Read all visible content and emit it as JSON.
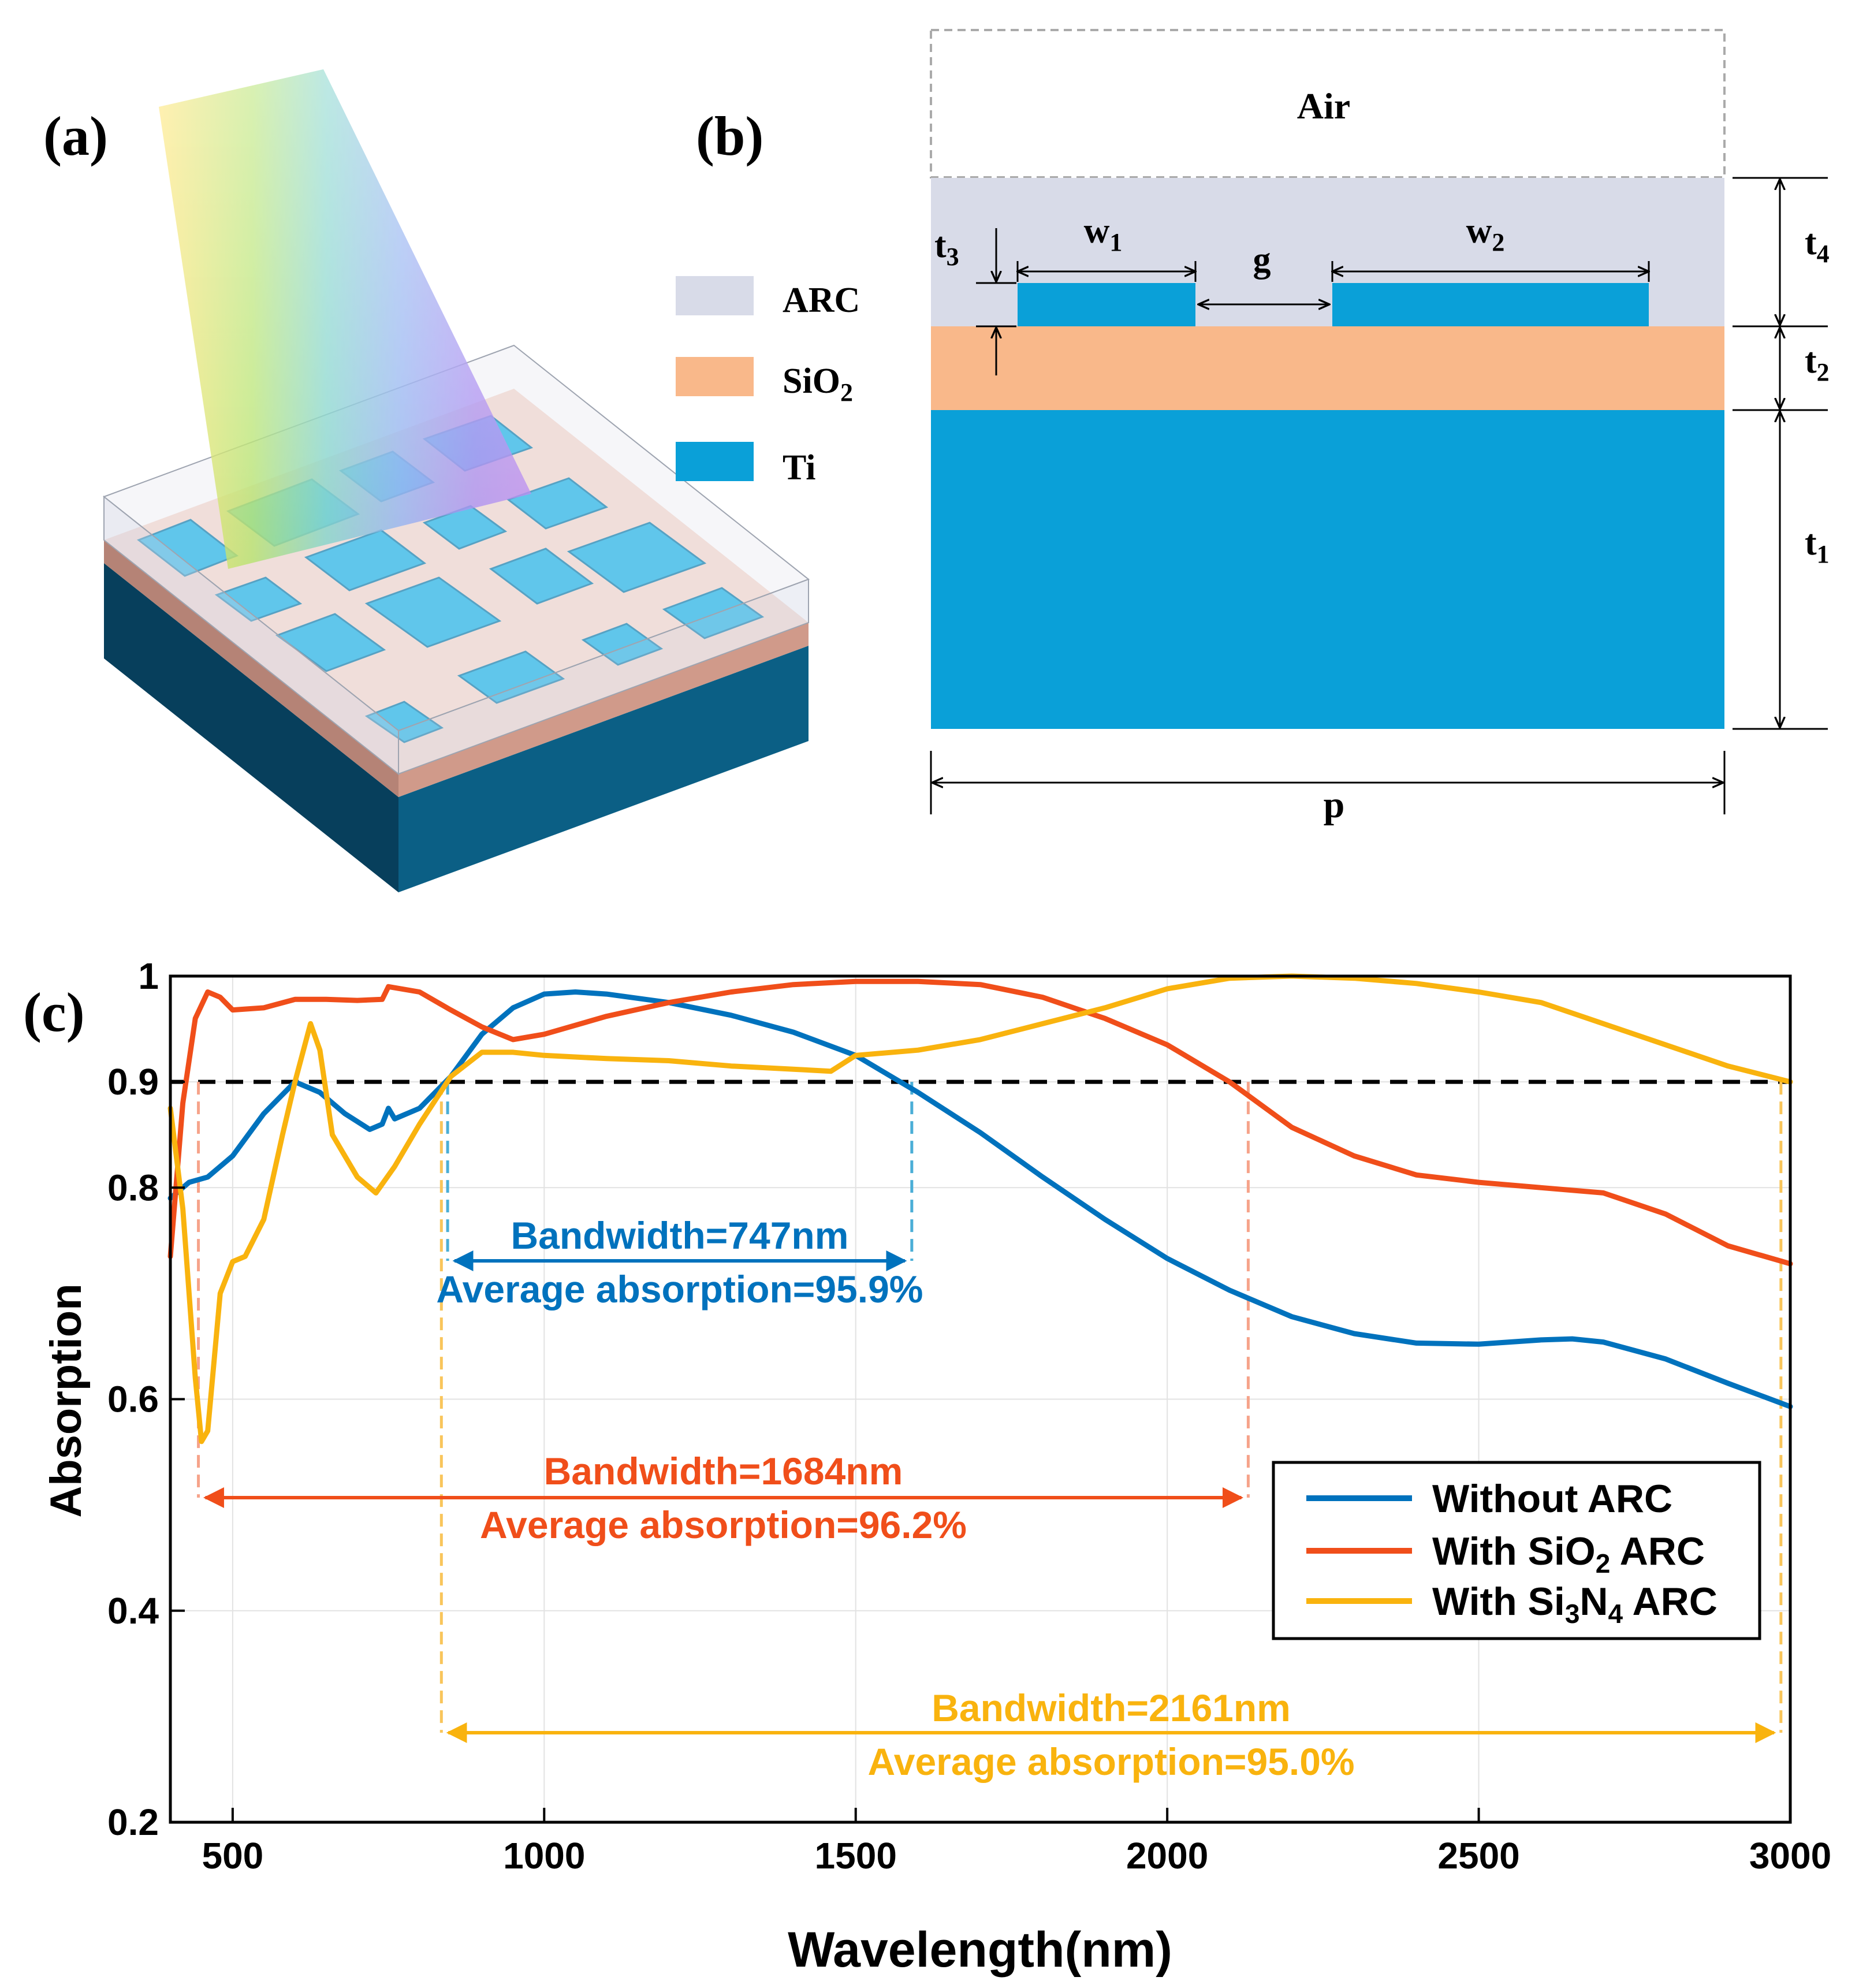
{
  "panels": {
    "a_label": "(a)",
    "b_label": "(b)",
    "c_label": "(c)"
  },
  "panel_a": {
    "legend": [
      {
        "label": "ARC",
        "color": "#d8dbe8"
      },
      {
        "label_main": "SiO",
        "label_sub": "2",
        "color": "#f9b88a"
      },
      {
        "label": "Ti",
        "color": "#0aa0d8"
      }
    ]
  },
  "panel_b": {
    "air": "Air",
    "w1_main": "w",
    "w1_sub": "1",
    "w2_main": "w",
    "w2_sub": "2",
    "g": "g",
    "t1_main": "t",
    "t1_sub": "1",
    "t2_main": "t",
    "t2_sub": "2",
    "t3_main": "t",
    "t3_sub": "3",
    "t4_main": "t",
    "t4_sub": "4",
    "p": "p"
  },
  "colors": {
    "blue": "#0072bd",
    "orange": "#f04e1a",
    "yellow": "#f9b30e",
    "lightblue": "#4aaed6",
    "salmon": "#f6a38a",
    "ti": "#0aa0d8",
    "sio2": "#f9b88a",
    "arc": "#d8dbe8"
  },
  "chart_data": {
    "type": "line",
    "xlabel": "Wavelength(nm)",
    "ylabel": "Absorption",
    "xlim": [
      400,
      3000
    ],
    "ylim": [
      0.2,
      1.0
    ],
    "xticks": [
      500,
      1000,
      1500,
      2000,
      2500,
      3000
    ],
    "yticks": [
      0.2,
      0.4,
      0.6,
      0.8,
      0.9,
      1.0
    ],
    "ytick_labels": [
      "0.2",
      "0.4",
      "0.6",
      "0.8",
      "0.9",
      "1"
    ],
    "threshold": 0.9,
    "legend": {
      "position": "right",
      "entries": [
        {
          "text": "Without ARC"
        },
        {
          "main": "With SiO",
          "sub": "2",
          "post": " ARC"
        },
        {
          "main": "With Si",
          "sub": "3",
          "main2": "N",
          "sub2": "4",
          "post": " ARC"
        }
      ]
    },
    "series": [
      {
        "name": "Without ARC",
        "color": "#0072bd",
        "x": [
          400,
          430,
          460,
          500,
          550,
          600,
          640,
          680,
          720,
          740,
          750,
          760,
          800,
          850,
          900,
          950,
          1000,
          1050,
          1100,
          1200,
          1300,
          1400,
          1500,
          1600,
          1700,
          1800,
          1900,
          2000,
          2100,
          2200,
          2300,
          2400,
          2500,
          2600,
          2650,
          2700,
          2800,
          2900,
          3000
        ],
        "y": [
          0.79,
          0.805,
          0.81,
          0.83,
          0.87,
          0.9,
          0.89,
          0.87,
          0.855,
          0.86,
          0.875,
          0.865,
          0.875,
          0.905,
          0.945,
          0.97,
          0.983,
          0.985,
          0.983,
          0.975,
          0.963,
          0.947,
          0.925,
          0.89,
          0.852,
          0.81,
          0.77,
          0.733,
          0.703,
          0.678,
          0.662,
          0.653,
          0.652,
          0.656,
          0.657,
          0.654,
          0.638,
          0.615,
          0.593
        ]
      },
      {
        "name": "With SiO2 ARC",
        "color": "#f04e1a",
        "x": [
          400,
          420,
          440,
          460,
          480,
          500,
          550,
          600,
          650,
          700,
          740,
          750,
          800,
          850,
          900,
          950,
          1000,
          1100,
          1200,
          1300,
          1400,
          1500,
          1600,
          1700,
          1800,
          1900,
          2000,
          2100,
          2200,
          2300,
          2400,
          2500,
          2600,
          2700,
          2800,
          2900,
          3000
        ],
        "y": [
          0.735,
          0.88,
          0.96,
          0.985,
          0.98,
          0.968,
          0.97,
          0.978,
          0.978,
          0.977,
          0.978,
          0.99,
          0.985,
          0.968,
          0.952,
          0.94,
          0.945,
          0.962,
          0.975,
          0.985,
          0.992,
          0.995,
          0.995,
          0.992,
          0.98,
          0.96,
          0.935,
          0.9,
          0.857,
          0.83,
          0.812,
          0.805,
          0.8,
          0.795,
          0.775,
          0.745,
          0.728
        ]
      },
      {
        "name": "With Si3N4 ARC",
        "color": "#f9b30e",
        "x": [
          400,
          420,
          440,
          450,
          460,
          480,
          500,
          520,
          550,
          580,
          600,
          625,
          640,
          660,
          700,
          730,
          760,
          800,
          850,
          900,
          950,
          1000,
          1100,
          1200,
          1300,
          1400,
          1460,
          1500,
          1600,
          1700,
          1800,
          1900,
          2000,
          2100,
          2200,
          2300,
          2400,
          2500,
          2600,
          2700,
          2800,
          2900,
          3000
        ],
        "y": [
          0.875,
          0.78,
          0.62,
          0.56,
          0.57,
          0.7,
          0.73,
          0.735,
          0.77,
          0.85,
          0.9,
          0.955,
          0.93,
          0.85,
          0.81,
          0.795,
          0.82,
          0.86,
          0.905,
          0.928,
          0.928,
          0.925,
          0.922,
          0.92,
          0.915,
          0.912,
          0.91,
          0.925,
          0.93,
          0.94,
          0.955,
          0.97,
          0.988,
          0.998,
          1.0,
          0.998,
          0.993,
          0.985,
          0.975,
          0.955,
          0.935,
          0.915,
          0.9
        ]
      }
    ],
    "annotations": [
      {
        "bandwidth": "Bandwidth=747nm",
        "average": "Average absorption=95.9%",
        "x_start": 845,
        "x_end": 1590,
        "color": "#0072bd"
      },
      {
        "bandwidth": "Bandwidth=1684nm",
        "average": "Average absorption=96.2%",
        "x_start": 445,
        "x_end": 2130,
        "color": "#f04e1a"
      },
      {
        "bandwidth": "Bandwidth=2161nm",
        "average": "Average absorption=95.0%",
        "x_start": 835,
        "x_end": 2985,
        "color": "#f9b30e"
      }
    ]
  }
}
